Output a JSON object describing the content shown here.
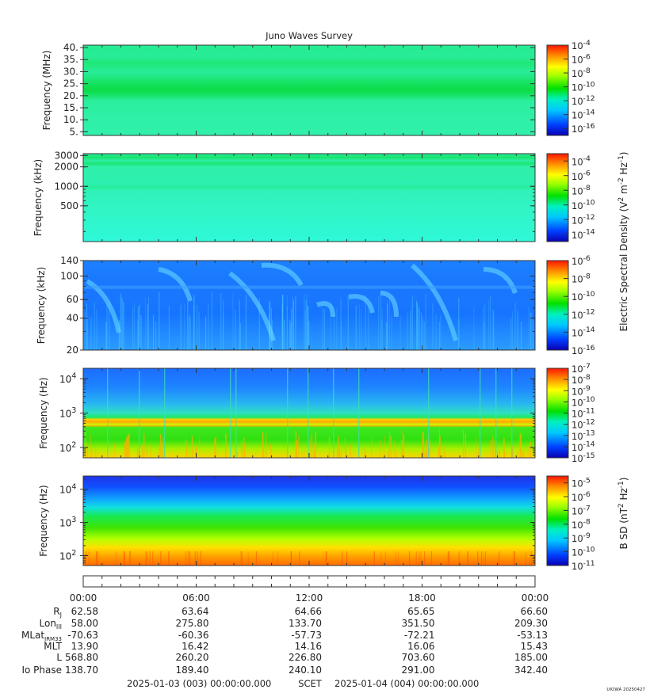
{
  "chart_data": {
    "type": "heatmap",
    "title": "Juno Waves Survey",
    "panels": [
      {
        "id": "p1",
        "ylabel": "Frequency (MHz)",
        "yscale": "linear",
        "ylim": [
          3.5,
          41
        ],
        "yticks": [
          "40.",
          "35.",
          "30.",
          "25.",
          "20.",
          "15.",
          "10.",
          "5."
        ],
        "ytick_values": [
          40,
          35,
          30,
          25,
          20,
          15,
          10,
          5
        ],
        "colorbar_ticks": [
          "10-4",
          "10-6",
          "10-8",
          "10-10",
          "10-12",
          "10-14",
          "10-16"
        ],
        "colorbar_exponents": [
          -4,
          -6,
          -8,
          -10,
          -12,
          -14,
          -16
        ],
        "colorbar_range": [
          -17,
          -4
        ]
      },
      {
        "id": "p2",
        "ylabel": "Frequency (kHz)",
        "yscale": "log",
        "ylim": [
          140,
          3200
        ],
        "yticks": [
          "3000",
          "2000",
          "1000",
          "500"
        ],
        "ytick_values": [
          3000,
          2000,
          1000,
          500
        ],
        "colorbar_ticks": [
          "10-4",
          "10-6",
          "10-8",
          "10-10",
          "10-12",
          "10-14"
        ],
        "colorbar_exponents": [
          -4,
          -6,
          -8,
          -10,
          -12,
          -14
        ],
        "colorbar_range": [
          -15,
          -3
        ]
      },
      {
        "id": "p3",
        "ylabel": "Frequency (kHz)",
        "yscale": "log",
        "ylim": [
          20,
          140
        ],
        "yticks": [
          "140",
          "100",
          "60",
          "40",
          "20"
        ],
        "ytick_values": [
          140,
          100,
          60,
          40,
          20
        ],
        "colorbar_ticks": [
          "10-6",
          "10-8",
          "10-10",
          "10-12",
          "10-14",
          "10-16"
        ],
        "colorbar_exponents": [
          -6,
          -8,
          -10,
          -12,
          -14,
          -16
        ],
        "colorbar_range": [
          -16,
          -6
        ]
      },
      {
        "id": "p4",
        "ylabel": "Frequency (Hz)",
        "yscale": "log",
        "ylim": [
          50,
          20000
        ],
        "yticks": [
          "10^4",
          "10^3",
          "10^2"
        ],
        "ytick_values": [
          10000,
          1000,
          100
        ],
        "colorbar_ticks": [
          "10-7",
          "10-8",
          "10-9",
          "10-10",
          "10-11",
          "10-12",
          "10-13",
          "10-14",
          "10-15"
        ],
        "colorbar_exponents": [
          -7,
          -8,
          -9,
          -10,
          -11,
          -12,
          -13,
          -14,
          -15
        ],
        "colorbar_range": [
          -15,
          -7
        ]
      },
      {
        "id": "p5",
        "ylabel": "Frequency (Hz)",
        "yscale": "log",
        "ylim": [
          50,
          25000
        ],
        "yticks": [
          "10^4",
          "10^3",
          "10^2"
        ],
        "ytick_values": [
          10000,
          1000,
          100
        ],
        "colorbar_ticks": [
          "10-5",
          "10-6",
          "10-7",
          "10-8",
          "10-9",
          "10-10",
          "10-11"
        ],
        "colorbar_exponents": [
          -5,
          -6,
          -7,
          -8,
          -9,
          -10,
          -11
        ],
        "colorbar_range": [
          -11,
          -4.5
        ]
      }
    ],
    "colorbar_label_electric": "Electric Spectral Density (V2 m-2 Hz-1)",
    "colorbar_label_magnetic": "B SD (nT2 Hz-1)",
    "x_tick_labels": [
      "00:00",
      "06:00",
      "12:00",
      "18:00",
      "00:00"
    ],
    "x_tick_hours": [
      0,
      6,
      12,
      18,
      24
    ],
    "xlim_hours": [
      0,
      24
    ],
    "ephemeris": [
      {
        "label": "Rj",
        "values": [
          "62.58",
          "63.64",
          "64.66",
          "65.65",
          "66.60"
        ]
      },
      {
        "label": "LonIII",
        "values": [
          "58.00",
          "275.80",
          "133.70",
          "351.50",
          "209.30"
        ]
      },
      {
        "label": "MLatJRM33",
        "values": [
          "-70.63",
          "-60.36",
          "-57.73",
          "-72.21",
          "-53.13"
        ]
      },
      {
        "label": "MLT",
        "values": [
          "13.90",
          "16.42",
          "14.16",
          "16.06",
          "15.43"
        ]
      },
      {
        "label": "L",
        "values": [
          "568.80",
          "260.20",
          "226.80",
          "703.60",
          "185.00"
        ]
      },
      {
        "label": "Io Phase",
        "values": [
          "138.70",
          "189.40",
          "240.10",
          "291.00",
          "342.40"
        ]
      }
    ],
    "time_range_start": "2025-01-03 (003) 00:00:00.000",
    "time_range_mid": "SCET",
    "time_range_end": "2025-01-04 (004) 00:00:00.000",
    "credit": "UIOWA 20250427"
  }
}
